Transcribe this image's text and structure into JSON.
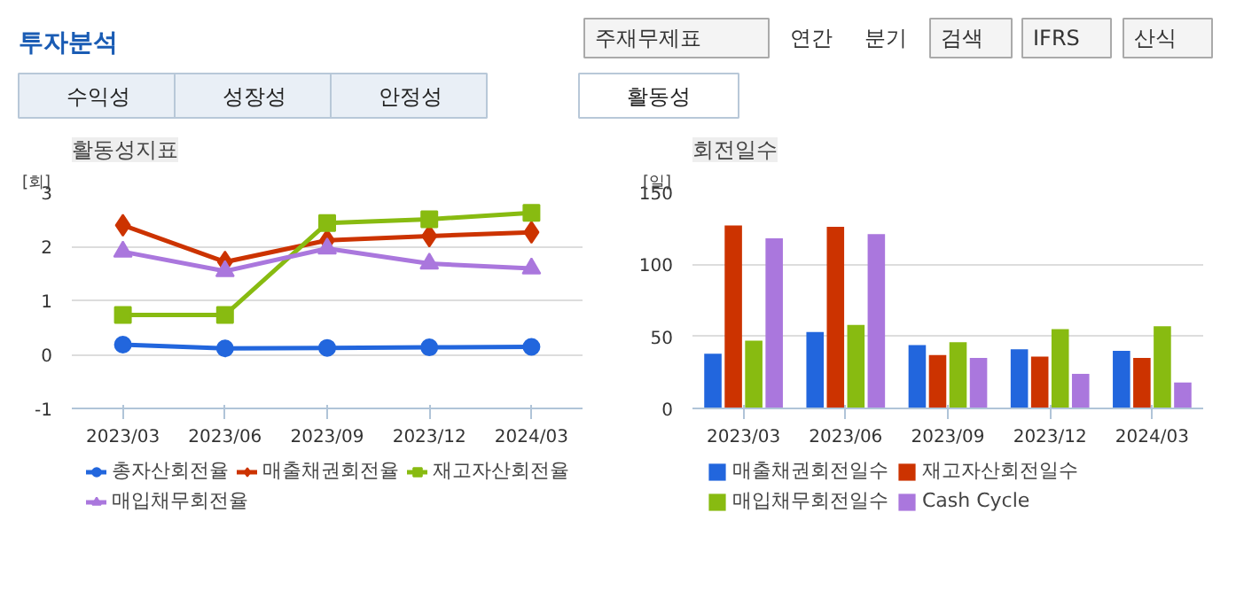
{
  "chart_data": [
    {
      "type": "other",
      "title": "투자분석",
      "annotations": [
        "주재무제표",
        "연간",
        "분기",
        "검색",
        "IFRS",
        "산식",
        "수익성",
        "성장성",
        "안정성",
        "활동성"
      ]
    },
    {
      "type": "line",
      "title": "활동성지표",
      "ylabel": "[회]",
      "categories": [
        "2023/03",
        "2023/06",
        "2023/09",
        "2023/12",
        "2024/03"
      ],
      "ylim": [
        -1,
        3
      ],
      "yticks": [
        -1,
        0,
        1,
        2,
        3
      ],
      "grid": "y",
      "legend": "bottom",
      "line_style": "solid",
      "series": [
        {
          "name": "총자산회전율",
          "color": "#2266dd",
          "marker": "circle",
          "values": [
            0.18,
            0.11,
            0.12,
            0.13,
            0.14
          ]
        },
        {
          "name": "매출채권회전율",
          "color": "#cc3300",
          "marker": "diamond",
          "values": [
            2.39,
            1.71,
            2.11,
            2.19,
            2.26
          ]
        },
        {
          "name": "재고자산회전율",
          "color": "#88bb11",
          "marker": "square",
          "values": [
            0.73,
            0.73,
            2.43,
            2.5,
            2.62
          ]
        },
        {
          "name": "매입채무회전율",
          "color": "#aa77dd",
          "marker": "triangle",
          "values": [
            1.9,
            1.54,
            1.96,
            1.68,
            1.59
          ]
        }
      ]
    },
    {
      "type": "bar",
      "title": "회전일수",
      "ylabel": "[일]",
      "categories": [
        "2023/03",
        "2023/06",
        "2023/09",
        "2023/12",
        "2024/03"
      ],
      "ylim": [
        0,
        150
      ],
      "yticks": [
        0,
        50,
        100,
        150
      ],
      "grid": "y",
      "legend": "bottom",
      "series": [
        {
          "name": "매출채권회전일수",
          "color": "#2266dd",
          "values": [
            38,
            53,
            44,
            41,
            40
          ]
        },
        {
          "name": "재고자산회전일수",
          "color": "#cc3300",
          "values": [
            127,
            126,
            37,
            36,
            35
          ]
        },
        {
          "name": "매입채무회전일수",
          "color": "#88bb11",
          "values": [
            47,
            58,
            46,
            55,
            57
          ]
        },
        {
          "name": "Cash Cycle",
          "color": "#aa77dd",
          "values": [
            118,
            121,
            35,
            24,
            18
          ]
        }
      ]
    }
  ]
}
